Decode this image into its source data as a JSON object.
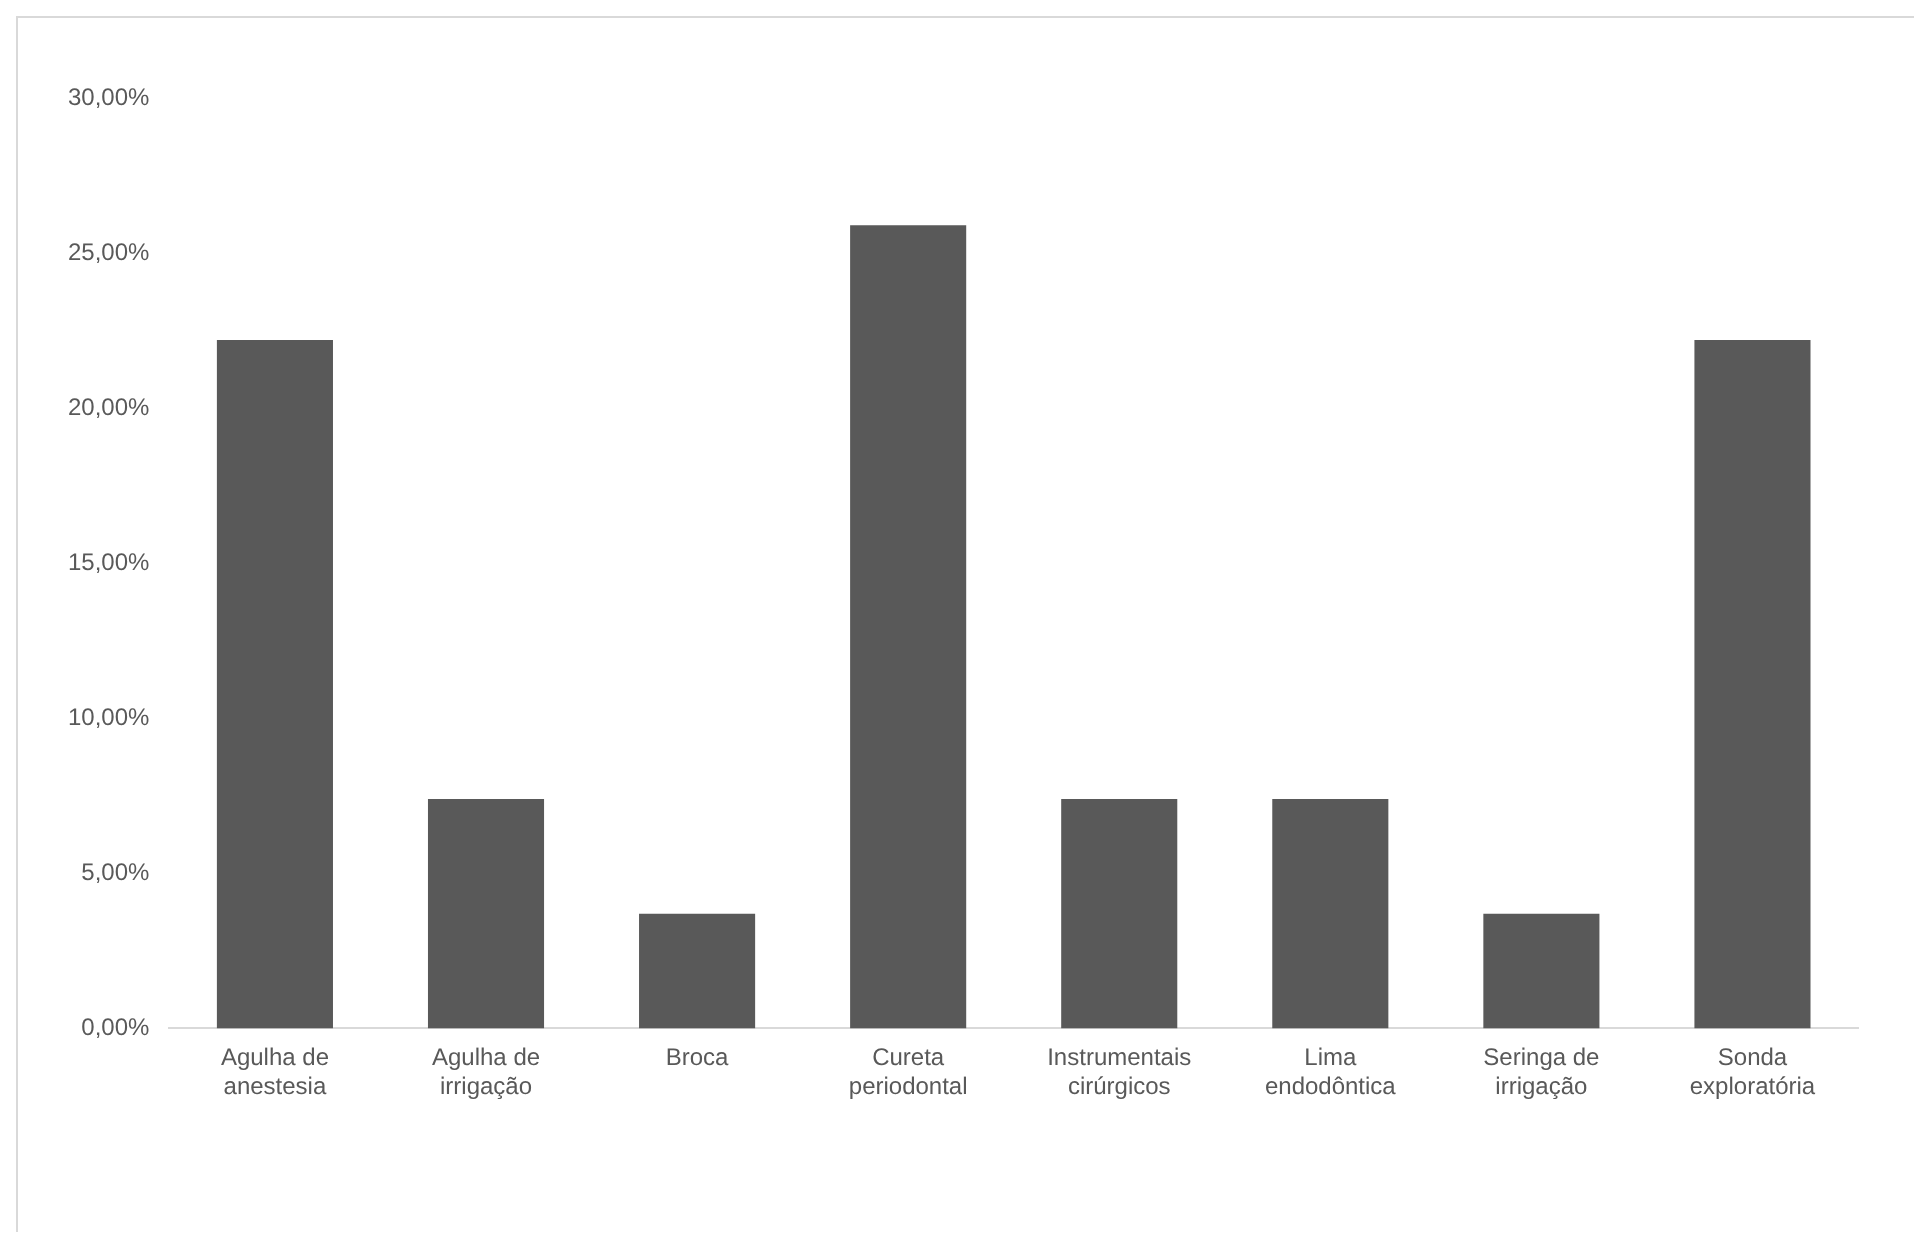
{
  "chart_data": {
    "type": "bar",
    "categories": [
      "Agulha de anestesia",
      "Agulha de irrigação",
      "Broca",
      "Cureta periodontal",
      "Instrumentais cirúrgicos",
      "Lima endodôntica",
      "Seringa de irrigação",
      "Sonda exploratória"
    ],
    "values": [
      22.2,
      7.4,
      3.7,
      25.9,
      7.4,
      7.4,
      3.7,
      22.2
    ],
    "color": "#595959",
    "ylim": [
      0,
      30
    ],
    "yticks": [
      {
        "value": 0,
        "label": "0,00%"
      },
      {
        "value": 5,
        "label": "5,00%"
      },
      {
        "value": 10,
        "label": "10,00%"
      },
      {
        "value": 15,
        "label": "15,00%"
      },
      {
        "value": 20,
        "label": "20,00%"
      },
      {
        "value": 25,
        "label": "25,00%"
      },
      {
        "value": 30,
        "label": "30,00%"
      }
    ],
    "grid": false,
    "legend": false
  }
}
